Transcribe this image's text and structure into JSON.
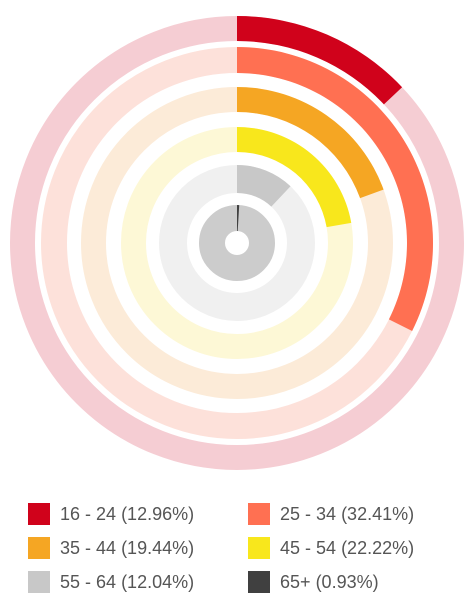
{
  "chart_data": {
    "type": "radial-bar",
    "categories": [
      "16 - 24",
      "25 - 34",
      "35 - 44",
      "45 - 54",
      "55 - 64",
      "65+"
    ],
    "values": [
      12.96,
      32.41,
      19.44,
      22.22,
      12.04,
      0.93
    ],
    "value_labels": [
      "(12.96%)",
      "(32.41%)",
      "(19.44%)",
      "(22.22%)",
      "(12.04%)",
      "(0.93%)"
    ],
    "colors": [
      "#d0021b",
      "#ff7052",
      "#f5a623",
      "#f8e71c",
      "#c8c8c8",
      "#404040"
    ],
    "track_colors": [
      "#f5cdd3",
      "#fde1da",
      "#fcebd8",
      "#fdf8d6",
      "#f0f0f0",
      "#cccccc"
    ],
    "legend": "bottom"
  }
}
